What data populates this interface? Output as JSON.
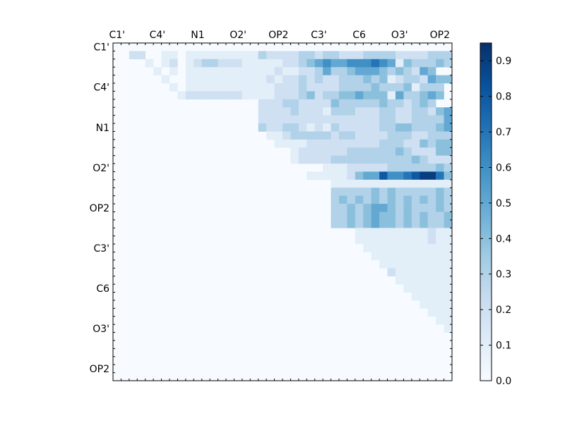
{
  "chart_data": {
    "type": "heatmap",
    "title": "",
    "xlabel": "",
    "ylabel": "",
    "x_tick_labels": [
      "C1'",
      "C4'",
      "N1",
      "O2'",
      "OP2",
      "C3'",
      "C6",
      "O3'",
      "OP2"
    ],
    "y_tick_labels": [
      "C1'",
      "C4'",
      "N1",
      "O2'",
      "OP2",
      "C3'",
      "C6",
      "O3'",
      "OP2"
    ],
    "grid": false,
    "colormap": "Blues",
    "colorbar": {
      "min": 0.0,
      "max": 0.95,
      "tick_labels": [
        "0.0",
        "0.1",
        "0.2",
        "0.3",
        "0.4",
        "0.5",
        "0.6",
        "0.7",
        "0.8",
        "0.9"
      ],
      "placement": "right"
    },
    "n": 42,
    "rows": [
      "..........................................",
      "..22..11.1111111113222233233222333322223333",
      "....1.12.123322211111223456556667651433343",
      ".....1.1.1111111111121122353345554343254",
      "......1..111111111121223232233343412332544",
      ".......1.11111111111222322223333433341333",
      "........122222221111222342334454441533454",
      "..................2223322224333334332343",
      "..................2222322213332223322332454",
      "..................2222222222222223322333354",
      "..................3223321213222223344333454",
      "...................112333332332222333223335",
      "....................11112222222223332243444",
      "......................122222233333343222444",
      "......................12222333333333343222444",
      "..........................1112222233333343454",
      "........................1111124558667899746545",
      "...........................1111111111111111112",
      "...........................3333343433333434343",
      "...........................3434343434343434343",
      "...........................3343455434333433434",
      "...........................3343454434343343434",
      "...........................3343454434343343434",
      "..............................1111111112111243",
      "..............................1111111112111154",
      "...............................1111111111111144",
      "................................11111111111133",
      ".................................1111111111134",
      "..................................2111111111133",
      "...................................111111111143",
      "....................................11111111133",
      ".....................................1111111133",
      "......................................11111134",
      ".......................................1111133",
      "........................................111154",
      ".........................................11133",
      "..........................................133",
      "...........................................12",
      "............................................1",
      "..........................................",
      "..........................................",
      ".........................................."
    ]
  }
}
